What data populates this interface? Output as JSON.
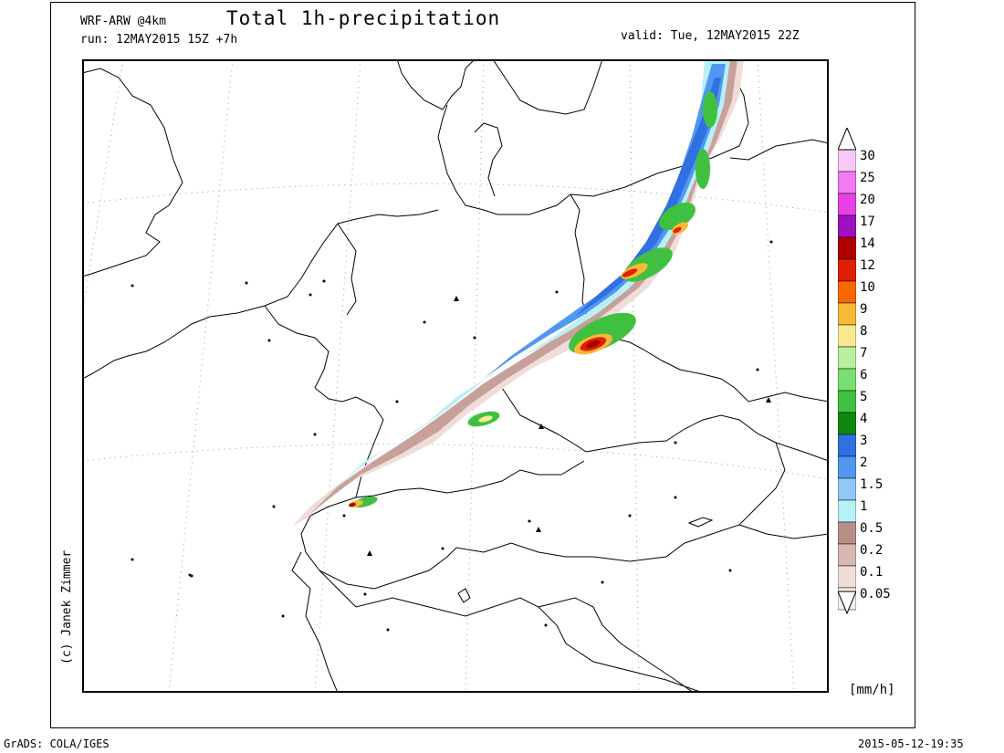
{
  "header": {
    "model": "WRF-ARW @4km",
    "run": "run: 12MAY2015 15Z +7h",
    "title": "Total 1h-precipitation",
    "valid": "valid: Tue, 12MAY2015 22Z"
  },
  "side": {
    "copyright": "(c) Janek Zimmer"
  },
  "legend": {
    "unit": "[mm/h]",
    "levels": [
      {
        "label": "30",
        "color": "#f8c8f8"
      },
      {
        "label": "25",
        "color": "#f27af2"
      },
      {
        "label": "20",
        "color": "#e840e8"
      },
      {
        "label": "17",
        "color": "#a010c0"
      },
      {
        "label": "14",
        "color": "#b00000"
      },
      {
        "label": "12",
        "color": "#e02000"
      },
      {
        "label": "10",
        "color": "#f86800"
      },
      {
        "label": "9",
        "color": "#f8b838"
      },
      {
        "label": "8",
        "color": "#f8e890"
      },
      {
        "label": "7",
        "color": "#b8f0a0"
      },
      {
        "label": "6",
        "color": "#78e070"
      },
      {
        "label": "5",
        "color": "#40c040"
      },
      {
        "label": "4",
        "color": "#108810"
      },
      {
        "label": "3",
        "color": "#3070e0"
      },
      {
        "label": "2",
        "color": "#5098f0"
      },
      {
        "label": "1.5",
        "color": "#90c8f8"
      },
      {
        "label": "1",
        "color": "#b8f0f8"
      },
      {
        "label": "0.5",
        "color": "#b89088"
      },
      {
        "label": "0.2",
        "color": "#d8b8b0"
      },
      {
        "label": "0.1",
        "color": "#f0dcd8"
      },
      {
        "label": "0.05",
        "color": "#faf0ec"
      }
    ]
  },
  "footer": {
    "left": "GrADS: COLA/IGES",
    "right": "2015-05-12-19:35"
  }
}
